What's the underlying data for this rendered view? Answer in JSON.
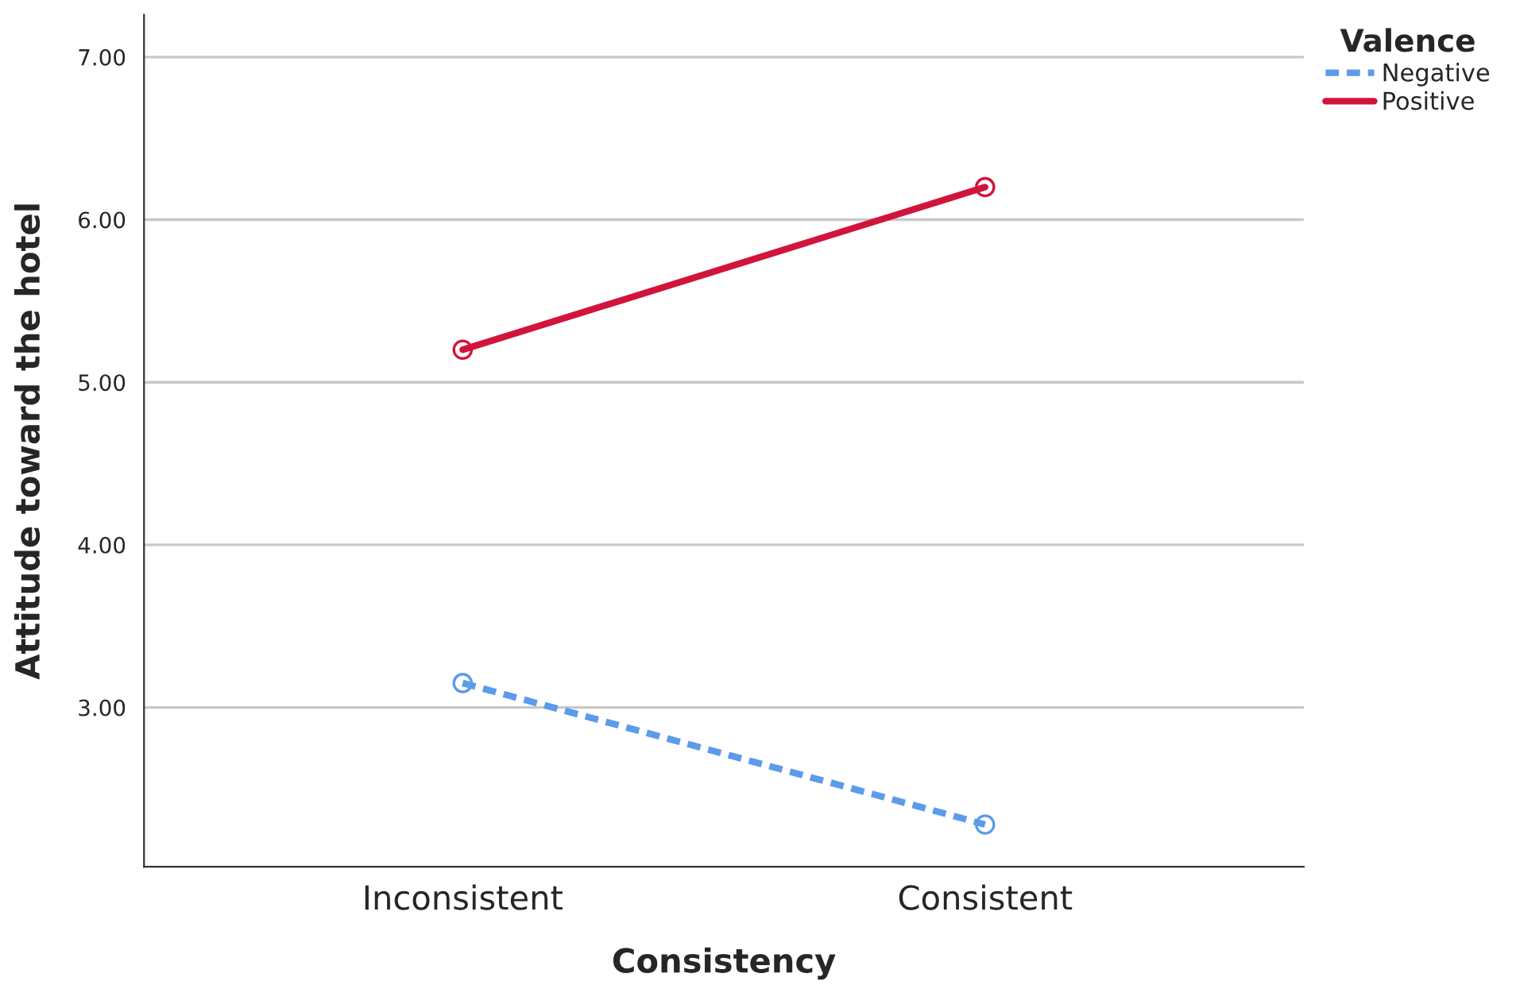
{
  "chart_data": {
    "type": "line",
    "xlabel": "Consistency",
    "ylabel": "Attitude toward the hotel",
    "legend_title": "Valence",
    "categories": [
      "Inconsistent",
      "Consistent"
    ],
    "series": [
      {
        "name": "Negative",
        "color": "#5b9bea",
        "values": [
          3.15,
          2.28
        ],
        "line_style": "dashed"
      },
      {
        "name": "Positive",
        "color": "#d1143c",
        "values": [
          5.2,
          6.2
        ],
        "line_style": "solid"
      }
    ],
    "ylim": [
      2.02,
      7.26
    ],
    "yticks": [
      {
        "value": 3,
        "label": "3.00"
      },
      {
        "value": 4,
        "label": "4.00"
      },
      {
        "value": 5,
        "label": "5.00"
      },
      {
        "value": 6,
        "label": "6.00"
      },
      {
        "value": 7,
        "label": "7.00"
      }
    ],
    "grid": "y",
    "legend": "top right",
    "marker": "circle"
  }
}
